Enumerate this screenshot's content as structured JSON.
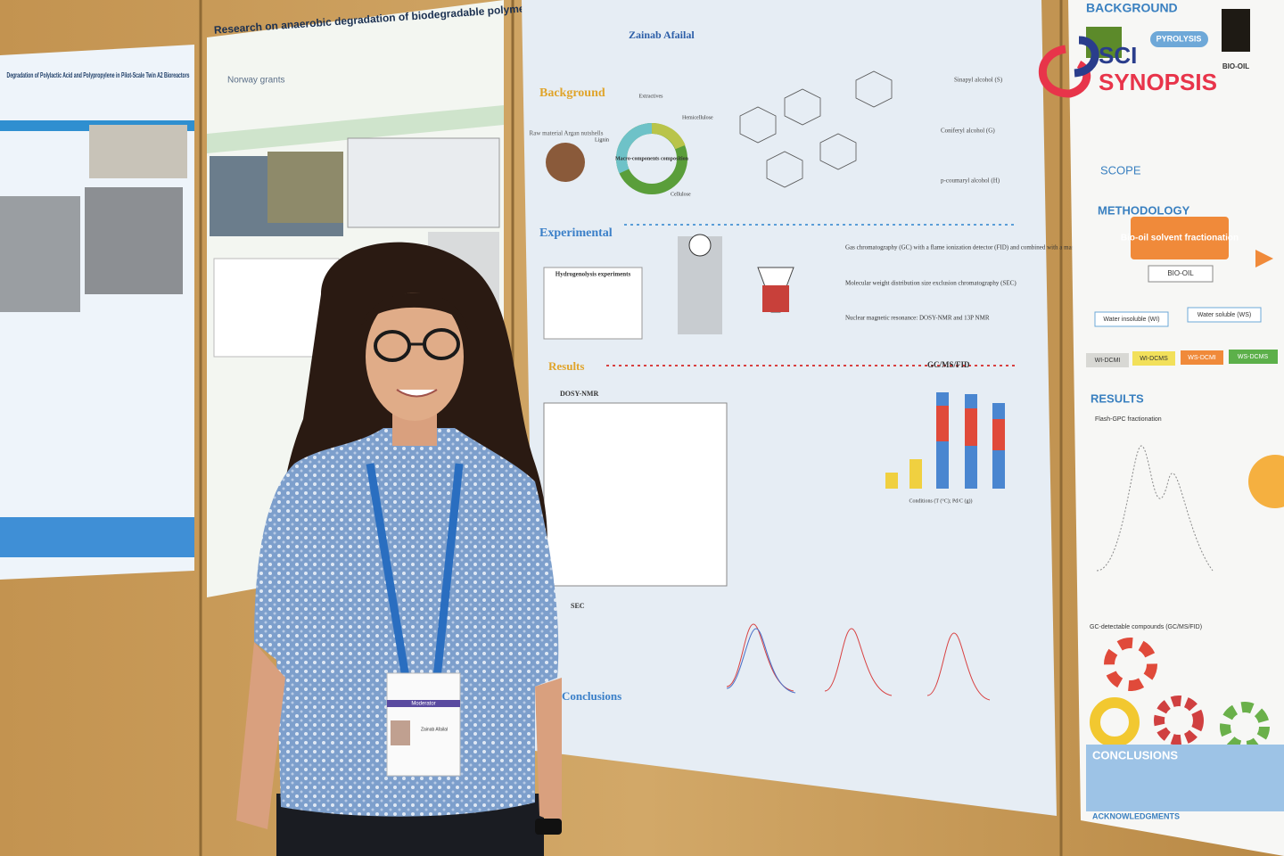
{
  "logo": {
    "line1": "SCI",
    "line2": "SYNOPSIS"
  },
  "left_poster": {
    "title": "Degradation of Polylactic Acid and Polypropylene in Pilot-Scale Twin A2 Bioreactors"
  },
  "middle_poster": {
    "title": "Research on anaerobic degradation of biodegradable polymers",
    "sponsor": "Norway grants"
  },
  "center_poster": {
    "author": "Zainab Afailal",
    "sections": {
      "background": "Background",
      "experimental": "Experimental",
      "results": "Results",
      "conclusions": "Conclusions"
    },
    "background": {
      "raw_material": "Raw material Argan nutshells",
      "donut_center": "Macro-components composition",
      "lignin": "Lignin",
      "cellulose": "Cellulose",
      "hemicellulose": "Hemicellulose",
      "extractives": "Extractives"
    },
    "monomers": [
      "Sinapyl alcohol (S)",
      "Coniferyl alcohol (G)",
      "p-coumaryl alcohol (H)"
    ],
    "experimental": {
      "box_title": "Hydrogenolysis experiments",
      "methods": [
        "Gas chromatography (GC) with a flame ionization detector (FID) and combined with a mass selective detector (MSD)",
        "Molecular weight distribution size exclusion chromatography (SEC)",
        "Nuclear magnetic resonance: DOSY-NMR and 13P NMR"
      ]
    },
    "results": {
      "dosy": "DOSY-NMR",
      "sec": "SEC",
      "gc": "GC/MS/FID",
      "x_label": "Conditions (T (°C); Pd/C (g))"
    }
  },
  "right_poster": {
    "background": "BACKGROUND",
    "pyrolysis": "PYROLYSIS",
    "bio_oil": "BIO-OIL",
    "scope": "SCOPE",
    "methodology": "METHODOLOGY",
    "fractionation": "Bio-oil solvent fractionation",
    "bio_oil_box": "BIO-OIL",
    "water_insoluble": "Water insoluble (WI)",
    "water_soluble": "Water soluble (WS)",
    "fractions": [
      "WI-DCMI",
      "WI-DCMS",
      "WS-DCMI",
      "WS-DCMS"
    ],
    "results": "RESULTS",
    "flash": "Flash-GPC fractionation",
    "gc": "GC-detectable compounds (GC/MS/FID)",
    "conclusions": "CONCLUSIONS",
    "acknowledgments": "ACKNOWLEDGMENTS"
  },
  "badge": {
    "role": "Moderator",
    "name": "Zainab Afailal"
  }
}
